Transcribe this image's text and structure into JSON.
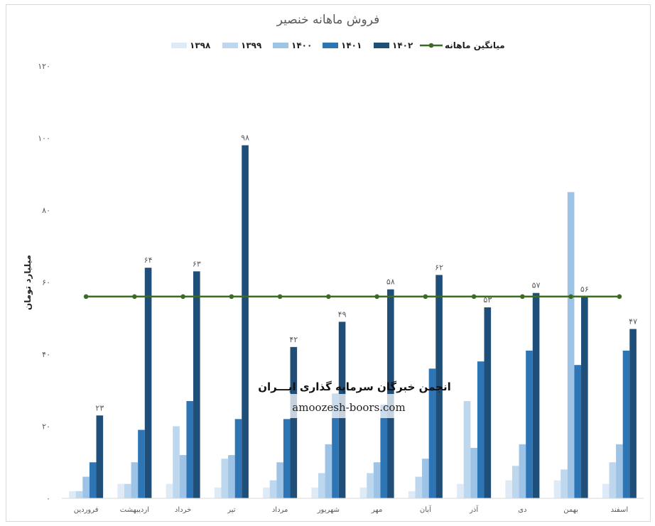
{
  "chart_data": {
    "type": "bar",
    "title": "فروش ماهانه خنصیر",
    "ylabel": "میلیارد تومان",
    "ylim": [
      0,
      120
    ],
    "yticks": [
      "۰",
      "۲۰",
      "۴۰",
      "۶۰",
      "۸۰",
      "۱۰۰",
      "۱۲۰"
    ],
    "yticks_values": [
      0,
      20,
      40,
      60,
      80,
      100,
      120
    ],
    "grid": false,
    "legend_position": "top",
    "categories": [
      "فروردین",
      "اردیبهشت",
      "خرداد",
      "تیر",
      "مرداد",
      "شهریور",
      "مهر",
      "آبان",
      "آذر",
      "دی",
      "بهمن",
      "اسفند"
    ],
    "series": [
      {
        "name": "۱۳۹۸",
        "color": "#deebf7",
        "values": [
          2,
          4,
          4,
          3,
          3,
          3,
          3,
          2,
          4,
          5,
          5,
          4
        ]
      },
      {
        "name": "۱۳۹۹",
        "color": "#bdd7ee",
        "values": [
          2,
          4,
          20,
          11,
          5,
          7,
          7,
          6,
          27,
          9,
          8,
          10
        ]
      },
      {
        "name": "۱۴۰۰",
        "color": "#9dc3e6",
        "values": [
          6,
          10,
          12,
          12,
          10,
          15,
          10,
          11,
          14,
          15,
          85,
          15
        ]
      },
      {
        "name": "۱۴۰۱",
        "color": "#2e75b6",
        "values": [
          10,
          19,
          27,
          22,
          22,
          29,
          26,
          36,
          38,
          41,
          37,
          41
        ]
      },
      {
        "name": "۱۴۰۲",
        "color": "#1f4e79",
        "values": [
          23,
          64,
          63,
          98,
          42,
          49,
          58,
          62,
          53,
          57,
          56,
          47
        ]
      }
    ],
    "data_labels": [
      "۲۳",
      "۶۴",
      "۶۳",
      "۹۸",
      "۴۲",
      "۴۹",
      "۵۸",
      "۶۲",
      "۵۳",
      "۵۷",
      "۵۶",
      "۴۷"
    ],
    "average_line": {
      "name": "میانگین ماهانه",
      "color": "#3d6b24",
      "value": 56
    }
  },
  "watermark": {
    "line1": "انجمن خبرگان سرمایه گذاری ایـــران",
    "line2": "amoozesh-boors.com"
  }
}
